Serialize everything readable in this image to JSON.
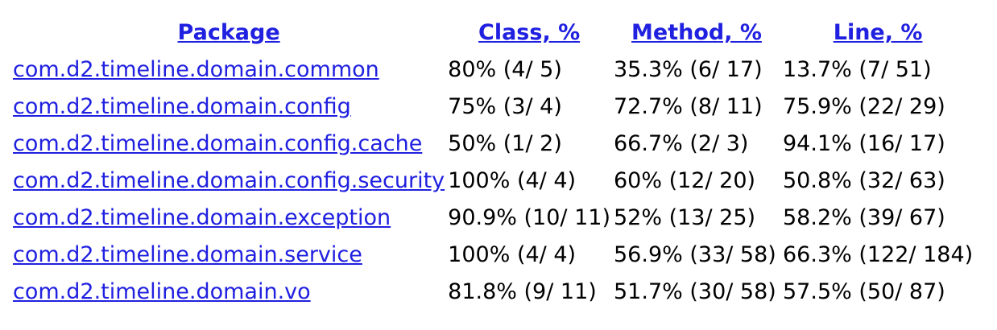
{
  "headers": {
    "package": "Package",
    "class": "Class, %",
    "method": "Method, %",
    "line": "Line, %"
  },
  "rows": [
    {
      "package": "com.d2.timeline.domain.common",
      "class": "80% (4/ 5)",
      "method": "35.3% (6/ 17)",
      "line": "13.7% (7/ 51)"
    },
    {
      "package": "com.d2.timeline.domain.config",
      "class": "75% (3/ 4)",
      "method": "72.7% (8/ 11)",
      "line": "75.9% (22/ 29)"
    },
    {
      "package": "com.d2.timeline.domain.config.cache",
      "class": "50% (1/ 2)",
      "method": "66.7% (2/ 3)",
      "line": "94.1% (16/ 17)"
    },
    {
      "package": "com.d2.timeline.domain.config.security",
      "class": "100% (4/ 4)",
      "method": "60% (12/ 20)",
      "line": "50.8% (32/ 63)"
    },
    {
      "package": "com.d2.timeline.domain.exception",
      "class": "90.9% (10/ 11)",
      "method": "52% (13/ 25)",
      "line": "58.2% (39/ 67)"
    },
    {
      "package": "com.d2.timeline.domain.service",
      "class": "100% (4/ 4)",
      "method": "56.9% (33/ 58)",
      "line": "66.3% (122/ 184)"
    },
    {
      "package": "com.d2.timeline.domain.vo",
      "class": "81.8% (9/ 11)",
      "method": "51.7% (30/ 58)",
      "line": "57.5% (50/ 87)"
    }
  ],
  "colors": {
    "link": "#2020e0",
    "text": "#000000",
    "background": "#ffffff"
  }
}
